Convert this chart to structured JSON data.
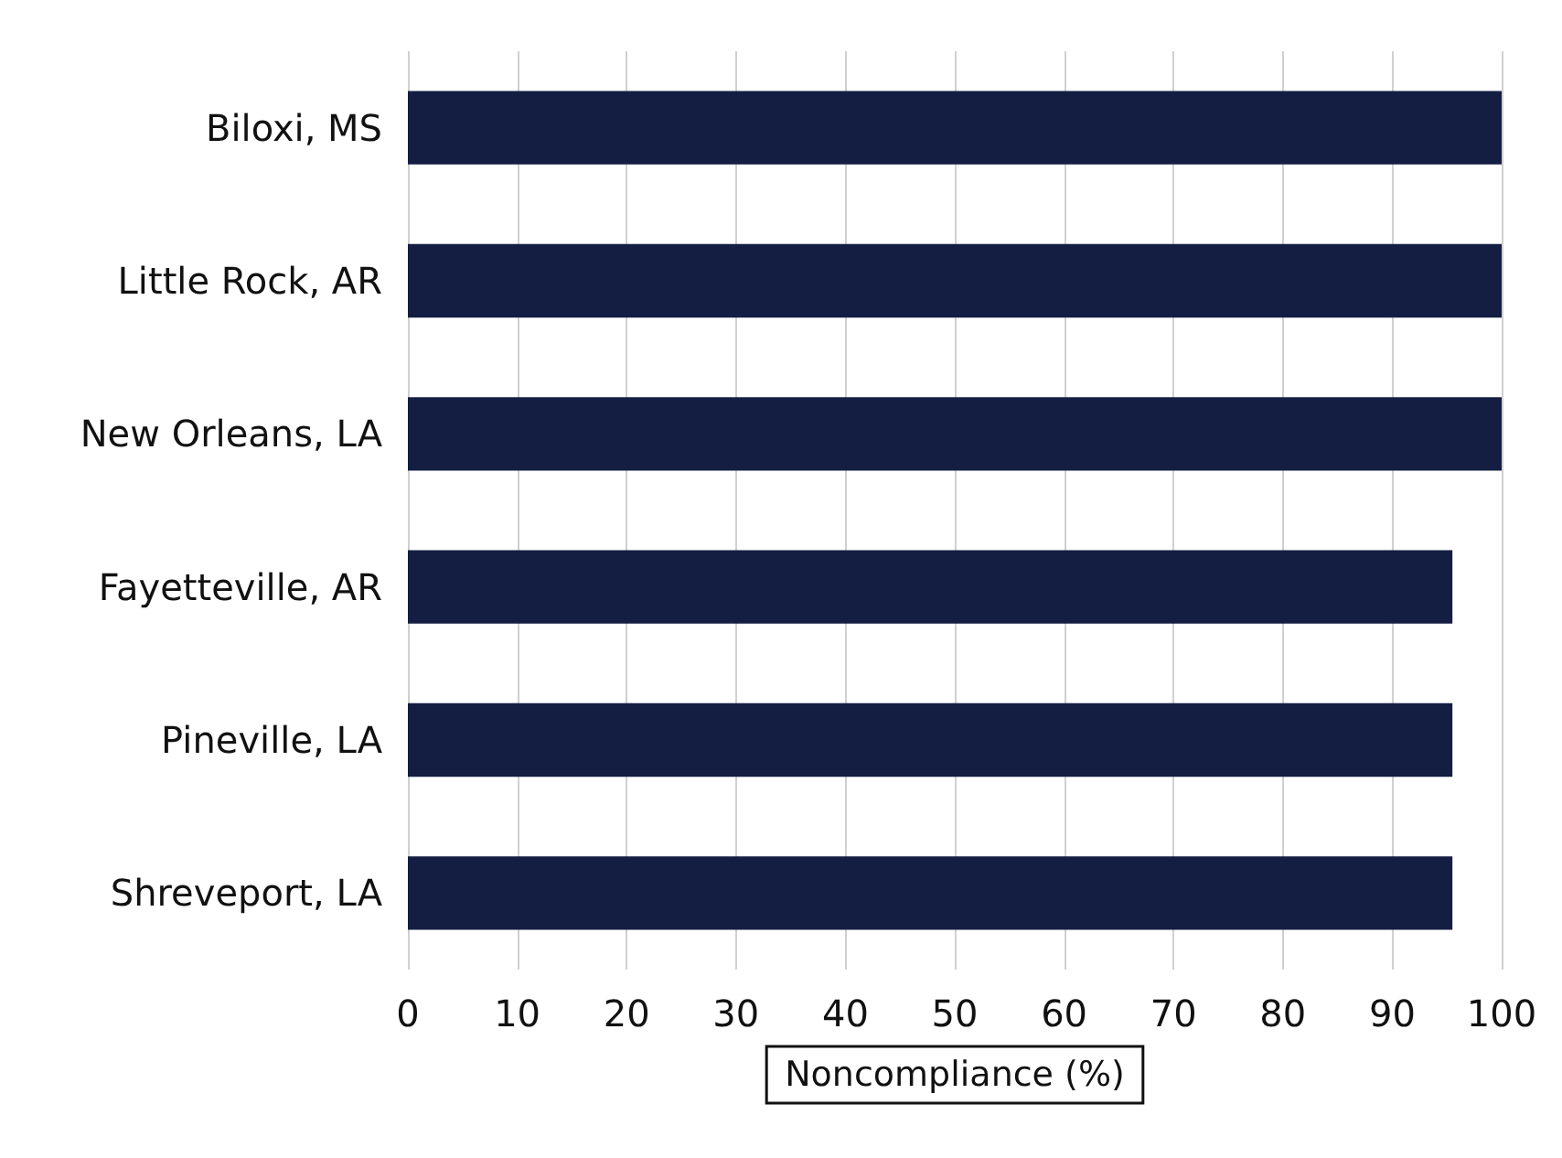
{
  "chart_data": {
    "type": "bar",
    "orientation": "horizontal",
    "xlabel": "Noncompliance (%)",
    "categories": [
      "Biloxi, MS",
      "Little Rock, AR",
      "New Orleans, LA",
      "Fayetteville, AR",
      "Pineville, LA",
      "Shreveport, LA"
    ],
    "values": [
      100,
      100,
      100,
      95.5,
      95.5,
      95.5
    ],
    "color": "#141e42",
    "xlim": [
      0,
      100
    ],
    "xticks": [
      0,
      10,
      20,
      30,
      40,
      50,
      60,
      70,
      80,
      90,
      100
    ],
    "grid": "x"
  }
}
